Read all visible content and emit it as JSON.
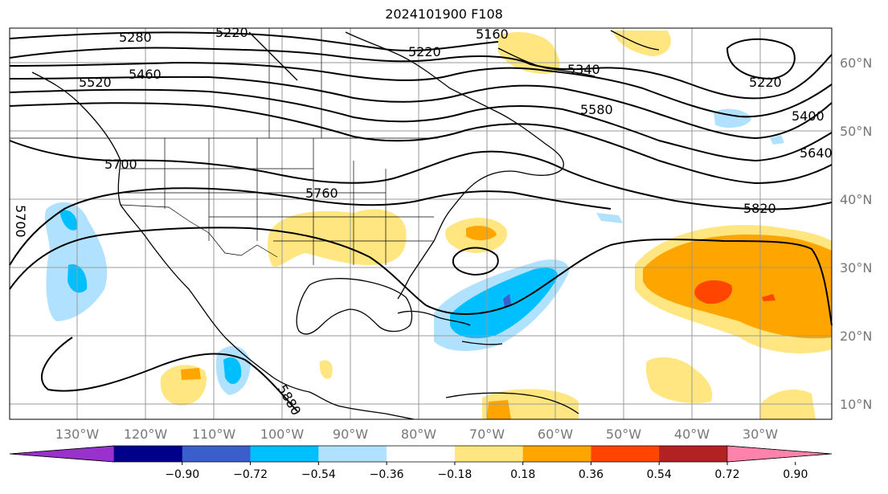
{
  "title": "2024101900 F108",
  "lon_labels": [
    "130°W",
    "120°W",
    "110°W",
    "100°W",
    "90°W",
    "80°W",
    "70°W",
    "60°W",
    "50°W",
    "40°W",
    "30°W"
  ],
  "lat_labels": [
    "60°N",
    "50°N",
    "40°N",
    "30°N",
    "20°N",
    "10°N"
  ],
  "contour_labels": [
    "5280",
    "5220",
    "5160",
    "5220",
    "5460",
    "5520",
    "5340",
    "5580",
    "5220",
    "5400",
    "5640",
    "5700",
    "5760",
    "5820",
    "5700",
    "5880"
  ],
  "colorbar": {
    "ticks": [
      "−0.90",
      "−0.72",
      "−0.54",
      "−0.36",
      "−0.18",
      "0.18",
      "0.36",
      "0.54",
      "0.72",
      "0.90"
    ],
    "colors": [
      "#9932cc",
      "#00008b",
      "#3a5fcd",
      "#00bfff",
      "#b0e2ff",
      "#ffffff",
      "#ffe680",
      "#ffa500",
      "#ff4500",
      "#b22222",
      "#ff82ab"
    ]
  }
}
